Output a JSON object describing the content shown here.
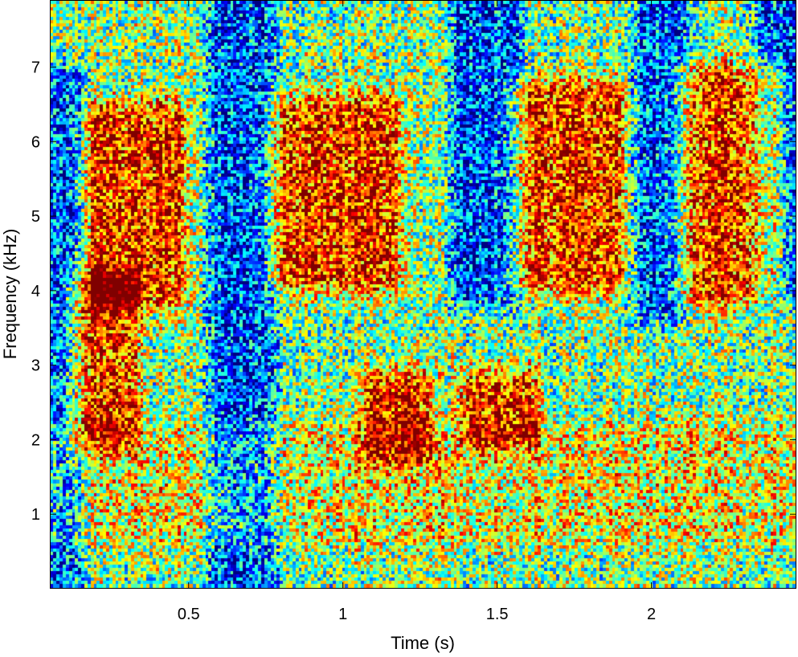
{
  "chart_data": {
    "type": "heatmap",
    "title": "",
    "xlabel": "Time (s)",
    "ylabel": "Frequency (kHz)",
    "xlim": [
      0.05,
      2.47
    ],
    "ylim": [
      0,
      7.9
    ],
    "xticks": [
      0.5,
      1,
      1.5,
      2
    ],
    "xtick_labels": [
      "0.5",
      "1",
      "1.5",
      "2"
    ],
    "yticks": [
      1,
      2,
      3,
      4,
      5,
      6,
      7
    ],
    "ytick_labels": [
      "1",
      "2",
      "3",
      "4",
      "5",
      "6",
      "7"
    ],
    "colormap": "jet",
    "colors": {
      "low": "#0000c8",
      "mid_low": "#00c8ff",
      "mid": "#ffff00",
      "high": "#ff2000"
    },
    "energy_regions": [
      {
        "t": [
          0.2,
          0.45
        ],
        "f": [
          4.0,
          6.3
        ],
        "level": "high"
      },
      {
        "t": [
          0.15,
          0.3
        ],
        "f": [
          2.1,
          4.0
        ],
        "level": "high"
      },
      {
        "t": [
          0.8,
          1.15
        ],
        "f": [
          4.2,
          6.4
        ],
        "level": "high"
      },
      {
        "t": [
          1.1,
          1.25
        ],
        "f": [
          1.9,
          2.7
        ],
        "level": "high"
      },
      {
        "t": [
          1.58,
          1.88
        ],
        "f": [
          4.2,
          6.6
        ],
        "level": "high"
      },
      {
        "t": [
          1.42,
          1.6
        ],
        "f": [
          2.1,
          2.7
        ],
        "level": "high"
      },
      {
        "t": [
          2.12,
          2.4
        ],
        "f": [
          4.0,
          6.8
        ],
        "level": "high"
      },
      {
        "t": [
          0.05,
          2.47
        ],
        "f": [
          0.8,
          2.0
        ],
        "level": "mid-high"
      },
      {
        "t": [
          0.6,
          0.75
        ],
        "f": [
          0.0,
          7.9
        ],
        "level": "low"
      },
      {
        "t": [
          1.38,
          1.55
        ],
        "f": [
          4.0,
          7.9
        ],
        "level": "low"
      },
      {
        "t": [
          1.98,
          2.1
        ],
        "f": [
          3.8,
          7.9
        ],
        "level": "low"
      },
      {
        "t": [
          2.38,
          2.47
        ],
        "f": [
          4.0,
          7.9
        ],
        "level": "low"
      },
      {
        "t": [
          0.05,
          0.12
        ],
        "f": [
          0.0,
          6.8
        ],
        "level": "low"
      }
    ]
  }
}
